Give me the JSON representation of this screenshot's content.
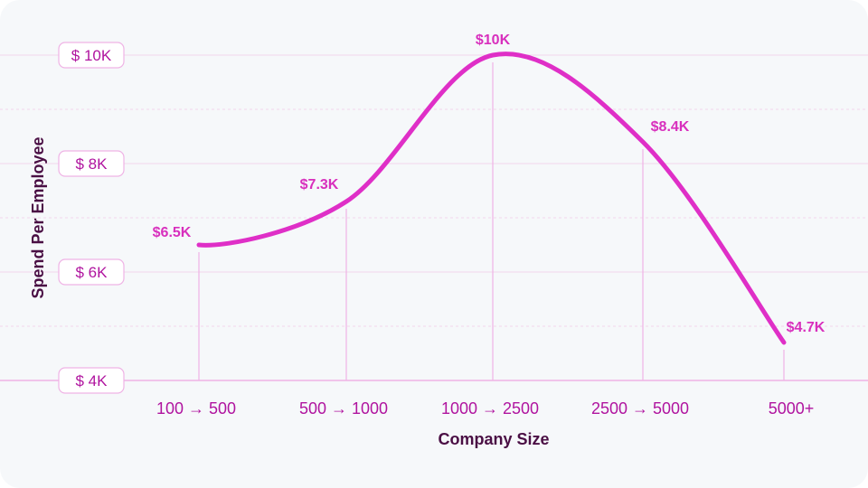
{
  "chart_data": {
    "type": "line",
    "xlabel": "Company Size",
    "ylabel": "Spend Per Employee",
    "categories": [
      "100 → 500",
      "500 → 1000",
      "1000 → 2500",
      "2500 → 5000",
      "5000+"
    ],
    "values": [
      6.5,
      7.3,
      10,
      8.4,
      4.7
    ],
    "value_labels": [
      "$6.5K",
      "$7.3K",
      "$10K",
      "$8.4K",
      "$4.7K"
    ],
    "y_ticks": [
      {
        "value": 10,
        "label": "$ 10K"
      },
      {
        "value": 8,
        "label": "$ 8K"
      },
      {
        "value": 6,
        "label": "$ 6K"
      },
      {
        "value": 4,
        "label": "$ 4K"
      }
    ],
    "ylim": [
      4,
      10
    ],
    "unit": "thousand USD",
    "grid": true,
    "smooth": true,
    "colors": {
      "line": "#df2fc7",
      "data_label": "#d82fbd",
      "tick_text": "#b0149f",
      "tick_border": "#efb3e5",
      "grid": "#f1d6ec",
      "drop_line": "#efb3e5",
      "axis": "#efb3e5",
      "axis_title": "#4a0f44"
    }
  }
}
